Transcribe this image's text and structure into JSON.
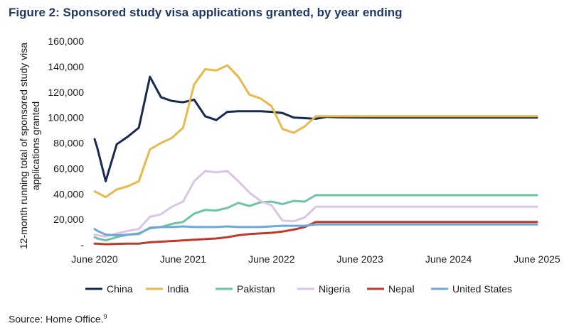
{
  "figure_title": "Figure 2: Sponsored study visa applications granted, by year ending",
  "source": {
    "text": "Source: Home Office.",
    "footnote": "9"
  },
  "chart_data": {
    "type": "line",
    "ylabel": "12-month running total of sponsored study visa applications granted",
    "ylim": [
      0,
      160000
    ],
    "yticks": [
      0,
      20000,
      40000,
      60000,
      80000,
      100000,
      120000,
      140000,
      160000
    ],
    "ytick_labels": [
      "-",
      "20,000",
      "40,000",
      "60,000",
      "80,000",
      "100,000",
      "120,000",
      "140,000",
      "160,000"
    ],
    "xlim": [
      0,
      20
    ],
    "xticks": [
      0,
      4,
      8,
      12,
      16,
      20
    ],
    "xtick_labels": [
      "June 2020",
      "June 2021",
      "June 2022",
      "June 2023",
      "June 2024",
      "June 2025"
    ],
    "legend_position": "bottom",
    "grid": false,
    "x": [
      0,
      0.125,
      0.5,
      1,
      1.5,
      2,
      2.5,
      3,
      3.5,
      4,
      4.5,
      5,
      5.5,
      6,
      6.5,
      7,
      7.5,
      8,
      8.5,
      9,
      9.5,
      10,
      10.5,
      11,
      11.5,
      12,
      12.5,
      13,
      13.5,
      14,
      14.5,
      15,
      15.5,
      16,
      16.5,
      17,
      17.5,
      18,
      18.5,
      19,
      19.5,
      20
    ],
    "series": [
      {
        "name": "China",
        "color": "#172a4e",
        "values": [
          83000,
          76000,
          50000,
          79000,
          85000,
          92000,
          132000,
          116000,
          113000,
          112000,
          114000,
          101000,
          98000,
          104500,
          105000,
          105000,
          105000,
          104500,
          103500,
          100000,
          99500,
          99000,
          100500,
          100200,
          100100,
          100050,
          100030,
          100020,
          100010,
          100005,
          100003,
          100002,
          100001,
          100001,
          100000,
          100000,
          100000,
          100000,
          100000,
          100000,
          100000,
          100000
        ]
      },
      {
        "name": "India",
        "color": "#e8b94a",
        "values": [
          42000,
          41000,
          37500,
          43500,
          46000,
          50000,
          75000,
          80000,
          84000,
          92000,
          126000,
          138000,
          137000,
          141000,
          132000,
          118000,
          115000,
          109000,
          91000,
          88000,
          93000,
          101000,
          101000,
          101000,
          101000,
          101000,
          101000,
          101000,
          101000,
          101000,
          101000,
          101000,
          101000,
          101000,
          101000,
          101000,
          101000,
          101000,
          101000,
          101000,
          101000,
          101000
        ]
      },
      {
        "name": "Pakistan",
        "color": "#6cc4a4",
        "values": [
          6000,
          5000,
          3500,
          6000,
          8000,
          9000,
          13000,
          14000,
          16500,
          18000,
          24500,
          27500,
          27000,
          29000,
          33000,
          30500,
          33500,
          34000,
          32000,
          34500,
          34000,
          39000,
          39000,
          39000,
          39000,
          39000,
          39000,
          39000,
          39000,
          39000,
          39000,
          39000,
          39000,
          39000,
          39000,
          39000,
          39000,
          39000,
          39000,
          39000,
          39000,
          39000
        ]
      },
      {
        "name": "Nigeria",
        "color": "#d9c6e6",
        "values": [
          8000,
          7500,
          6500,
          9000,
          11000,
          12500,
          22000,
          24000,
          30000,
          34000,
          50000,
          58000,
          57000,
          58000,
          50000,
          41000,
          34500,
          31000,
          19000,
          18500,
          21500,
          30000,
          30000,
          30000,
          30000,
          30000,
          30000,
          30000,
          30000,
          30000,
          30000,
          30000,
          30000,
          30000,
          30000,
          30000,
          30000,
          30000,
          30000,
          30000,
          30000,
          30000
        ]
      },
      {
        "name": "Nepal",
        "color": "#c0392b",
        "values": [
          1000,
          900,
          500,
          800,
          1000,
          1000,
          2000,
          2500,
          3000,
          3500,
          4000,
          4500,
          5000,
          6000,
          7500,
          8500,
          9000,
          9500,
          10500,
          12000,
          14000,
          18000,
          18000,
          18000,
          18000,
          18000,
          18000,
          18000,
          18000,
          18000,
          18000,
          18000,
          18000,
          18000,
          18000,
          18000,
          18000,
          18000,
          18000,
          18000,
          18000,
          18000
        ]
      },
      {
        "name": "United States",
        "color": "#6fa8d6",
        "values": [
          12500,
          11000,
          8000,
          7500,
          8000,
          8500,
          13500,
          14000,
          14000,
          14500,
          14000,
          14000,
          14000,
          14500,
          14000,
          14000,
          14000,
          14500,
          15000,
          15000,
          15000,
          16000,
          16000,
          16000,
          16000,
          16000,
          16000,
          16000,
          16000,
          16000,
          16000,
          16000,
          16000,
          16000,
          16000,
          16000,
          16000,
          16000,
          16000,
          16000,
          16000,
          16000
        ]
      }
    ]
  }
}
